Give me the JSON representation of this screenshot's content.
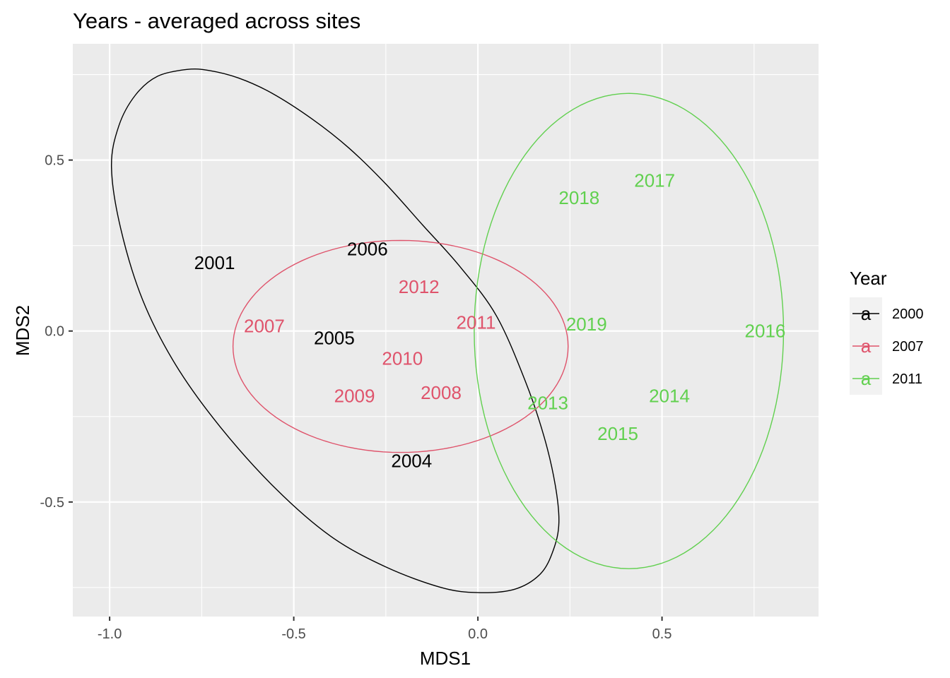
{
  "chart_data": {
    "type": "scatter",
    "title": "Years - averaged across sites",
    "xlabel": "MDS1",
    "ylabel": "MDS2",
    "xlim": [
      -1.1,
      0.925
    ],
    "ylim": [
      -0.835,
      0.84
    ],
    "xticks": [
      {
        "value": -1.0,
        "label": "-1.0"
      },
      {
        "value": -0.5,
        "label": "-0.5"
      },
      {
        "value": 0.0,
        "label": "0.0"
      },
      {
        "value": 0.5,
        "label": "0.5"
      }
    ],
    "yticks": [
      {
        "value": -0.5,
        "label": "-0.5"
      },
      {
        "value": 0.0,
        "label": "0.0"
      },
      {
        "value": 0.5,
        "label": "0.5"
      }
    ],
    "grid": true,
    "legend": {
      "title": "Year",
      "position": "right",
      "entries": [
        {
          "label": "2000",
          "glyph": "a",
          "color": "#000000"
        },
        {
          "label": "2007",
          "glyph": "a",
          "color": "#DF536B"
        },
        {
          "label": "2011",
          "glyph": "a",
          "color": "#61D04F"
        }
      ]
    },
    "series": [
      {
        "name": "2000",
        "color": "#000000",
        "points": [
          {
            "label": "2001",
            "x": -0.715,
            "y": 0.2
          },
          {
            "label": "2006",
            "x": -0.3,
            "y": 0.24
          },
          {
            "label": "2005",
            "x": -0.39,
            "y": -0.02
          },
          {
            "label": "2004",
            "x": -0.18,
            "y": -0.38
          }
        ],
        "ellipse": [
          [
            -0.79,
            0.765
          ],
          [
            -0.73,
            0.762
          ],
          [
            -0.65,
            0.74
          ],
          [
            -0.56,
            0.696
          ],
          [
            -0.45,
            0.62
          ],
          [
            -0.35,
            0.535
          ],
          [
            -0.25,
            0.43
          ],
          [
            -0.15,
            0.31
          ],
          [
            -0.05,
            0.19
          ],
          [
            0.05,
            0.045
          ],
          [
            0.13,
            -0.15
          ],
          [
            0.18,
            -0.31
          ],
          [
            0.21,
            -0.45
          ],
          [
            0.22,
            -0.56
          ],
          [
            0.205,
            -0.64
          ],
          [
            0.17,
            -0.71
          ],
          [
            0.1,
            -0.755
          ],
          [
            0.0,
            -0.765
          ],
          [
            -0.1,
            -0.75
          ],
          [
            -0.25,
            -0.69
          ],
          [
            -0.4,
            -0.6
          ],
          [
            -0.55,
            -0.46
          ],
          [
            -0.7,
            -0.28
          ],
          [
            -0.82,
            -0.1
          ],
          [
            -0.91,
            0.09
          ],
          [
            -0.97,
            0.3
          ],
          [
            -0.995,
            0.48
          ],
          [
            -0.975,
            0.6
          ],
          [
            -0.93,
            0.69
          ],
          [
            -0.87,
            0.745
          ],
          [
            -0.79,
            0.765
          ]
        ]
      },
      {
        "name": "2007",
        "color": "#DF536B",
        "points": [
          {
            "label": "2012",
            "x": -0.16,
            "y": 0.13
          },
          {
            "label": "2011",
            "x": -0.005,
            "y": 0.025
          },
          {
            "label": "2007",
            "x": -0.58,
            "y": 0.015
          },
          {
            "label": "2010",
            "x": -0.205,
            "y": -0.08
          },
          {
            "label": "2009",
            "x": -0.335,
            "y": -0.19
          },
          {
            "label": "2008",
            "x": -0.1,
            "y": -0.18
          }
        ],
        "ellipse_center": [
          -0.21,
          -0.045
        ],
        "ellipse_radii": [
          0.455,
          0.31
        ]
      },
      {
        "name": "2011",
        "color": "#61D04F",
        "points": [
          {
            "label": "2017",
            "x": 0.48,
            "y": 0.44
          },
          {
            "label": "2018",
            "x": 0.275,
            "y": 0.39
          },
          {
            "label": "2019",
            "x": 0.295,
            "y": 0.02
          },
          {
            "label": "2016",
            "x": 0.78,
            "y": 0.0
          },
          {
            "label": "2013",
            "x": 0.19,
            "y": -0.21
          },
          {
            "label": "2014",
            "x": 0.52,
            "y": -0.19
          },
          {
            "label": "2015",
            "x": 0.38,
            "y": -0.3
          }
        ],
        "ellipse_center": [
          0.41,
          0.0
        ],
        "ellipse_radii": [
          0.42,
          0.695
        ]
      }
    ]
  }
}
